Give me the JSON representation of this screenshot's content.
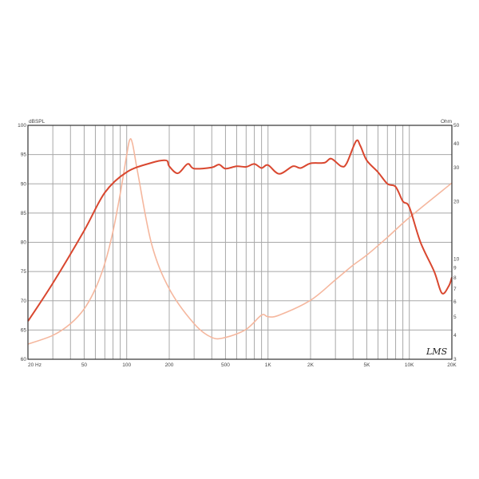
{
  "chart_data": {
    "type": "line",
    "x_scale": "log",
    "xlim": [
      20,
      20000
    ],
    "ylim": [
      60,
      100
    ],
    "y2lim": [
      3,
      50
    ],
    "y2_scale": "log",
    "grid": true,
    "ylabel": "dBSPL",
    "y2label": "Ohm",
    "x_ticks": [
      {
        "value": 20,
        "label": "20  Hz"
      },
      {
        "value": 50,
        "label": "50"
      },
      {
        "value": 100,
        "label": "100"
      },
      {
        "value": 200,
        "label": "200"
      },
      {
        "value": 500,
        "label": "500"
      },
      {
        "value": 1000,
        "label": "1K"
      },
      {
        "value": 2000,
        "label": "2K"
      },
      {
        "value": 5000,
        "label": "5K"
      },
      {
        "value": 10000,
        "label": "10K"
      },
      {
        "value": 20000,
        "label": "20K"
      }
    ],
    "y_ticks": [
      "60",
      "65",
      "70",
      "75",
      "80",
      "85",
      "90",
      "95",
      "100"
    ],
    "y2_ticks": [
      "3",
      "4",
      "5",
      "6",
      "7",
      "8",
      "9",
      "10",
      "20",
      "30",
      "40",
      "50"
    ],
    "watermark": "LMS",
    "colors": {
      "spl": "#d9472f",
      "impedance": "#f5b79e",
      "grid": "#a8a8a8"
    },
    "series": [
      {
        "axis": "left",
        "x": [
          20,
          30,
          50,
          70,
          100,
          150,
          190,
          200,
          230,
          270,
          300,
          400,
          450,
          500,
          600,
          700,
          800,
          900,
          1000,
          1200,
          1500,
          1700,
          2000,
          2500,
          2800,
          3300,
          3600,
          4200,
          4500,
          5000,
          6000,
          7000,
          8000,
          9000,
          10000,
          12000,
          15000,
          17000,
          19000,
          20000
        ],
        "y": [
          66.5,
          73,
          82,
          88.5,
          92,
          93.6,
          94,
          93,
          91.8,
          93.4,
          92.6,
          92.8,
          93.3,
          92.6,
          93,
          92.9,
          93.4,
          92.7,
          93.2,
          91.7,
          93,
          92.7,
          93.5,
          93.6,
          94.3,
          93,
          93.5,
          97.3,
          96.5,
          94,
          92,
          90,
          89.5,
          87,
          86,
          80,
          75,
          71.3,
          72.5,
          74
        ]
      },
      {
        "axis": "right",
        "x": [
          20,
          30,
          40,
          50,
          60,
          70,
          80,
          90,
          100,
          105,
          110,
          120,
          150,
          200,
          300,
          400,
          500,
          700,
          900,
          1000,
          1200,
          2000,
          3000,
          4000,
          5000,
          7000,
          10000,
          20000
        ],
        "y": [
          3.6,
          4,
          4.6,
          5.5,
          7,
          9.5,
          14,
          22,
          35,
          42,
          40,
          28,
          12,
          7,
          4.6,
          3.9,
          3.9,
          4.3,
          5.1,
          5,
          5.1,
          6.1,
          7.8,
          9.3,
          10.5,
          13,
          16.5,
          25
        ]
      }
    ]
  }
}
